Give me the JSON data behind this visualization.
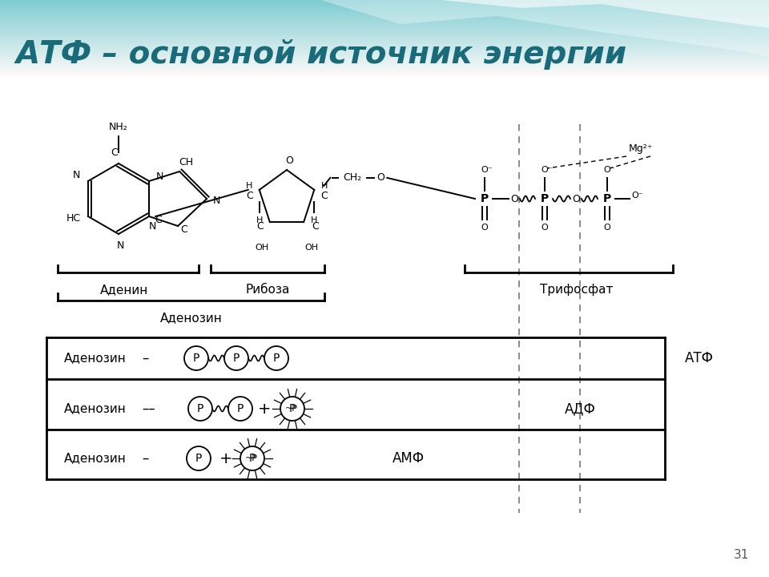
{
  "title": "АТФ – основной источник энергии",
  "title_color": "#1a6b7a",
  "title_fontsize": 28,
  "number_label": "31",
  "adenine_label": "Аденин",
  "ribose_label": "Рибоза",
  "adenosine_label": "Аденозин",
  "triphosphate_label": "Трифосфат",
  "atf_label": "АТФ",
  "adf_label": "АДФ",
  "amf_label": "АМФ",
  "mg_label": "Mg²⁺",
  "nh2_label": "NH₂"
}
